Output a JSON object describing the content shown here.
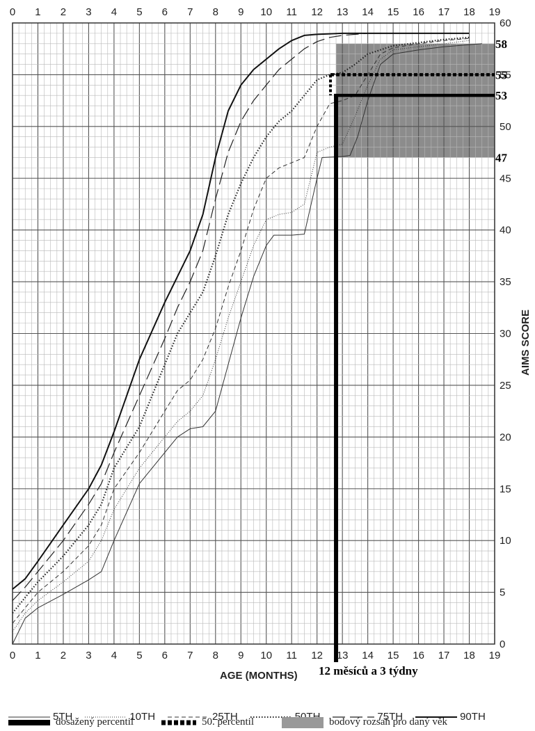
{
  "chart_data": {
    "type": "line",
    "xlabel": "AGE (MONTHS)",
    "ylabel": "AIMS SCORE",
    "xlim": [
      0,
      19
    ],
    "ylim": [
      0,
      60
    ],
    "x_ticks": [
      "0",
      "1",
      "2",
      "3",
      "4",
      "5",
      "6",
      "7",
      "8",
      "9",
      "10",
      "11",
      "12",
      "13",
      "14",
      "15",
      "16",
      "17",
      "18",
      "19"
    ],
    "y_ticks": [
      "0",
      "5",
      "10",
      "15",
      "20",
      "25",
      "30",
      "35",
      "40",
      "45",
      "50",
      "55",
      "60"
    ],
    "series": [
      {
        "name": "5TH",
        "style": "solid-thin",
        "color": "#333333",
        "points": [
          [
            0,
            0
          ],
          [
            0.5,
            2.5
          ],
          [
            1,
            3.5
          ],
          [
            2,
            4.8
          ],
          [
            3,
            6.2
          ],
          [
            3.5,
            7
          ],
          [
            4,
            10
          ],
          [
            5,
            15.5
          ],
          [
            6,
            18.5
          ],
          [
            6.5,
            20
          ],
          [
            7,
            20.8
          ],
          [
            7.5,
            21
          ],
          [
            8,
            22.5
          ],
          [
            8.5,
            27
          ],
          [
            9,
            31.5
          ],
          [
            9.5,
            35.5
          ],
          [
            10,
            38.5
          ],
          [
            10.3,
            39.5
          ],
          [
            11,
            39.5
          ],
          [
            11.5,
            39.6
          ],
          [
            12,
            45
          ],
          [
            12.2,
            47
          ],
          [
            13,
            47.1
          ],
          [
            13.3,
            47.2
          ],
          [
            13.6,
            49
          ],
          [
            14,
            52.5
          ],
          [
            14.5,
            56
          ],
          [
            15,
            57
          ],
          [
            16,
            57.4
          ],
          [
            17,
            57.7
          ],
          [
            18,
            57.9
          ],
          [
            18.5,
            58
          ]
        ]
      },
      {
        "name": "10TH",
        "style": "dotted-thin",
        "color": "#333333",
        "points": [
          [
            0,
            1.2
          ],
          [
            0.5,
            3
          ],
          [
            1,
            4.2
          ],
          [
            2,
            6
          ],
          [
            3,
            8
          ],
          [
            3.5,
            10
          ],
          [
            4,
            13
          ],
          [
            5,
            17
          ],
          [
            6,
            20
          ],
          [
            6.5,
            21.5
          ],
          [
            7,
            22.5
          ],
          [
            7.5,
            24
          ],
          [
            8,
            27.5
          ],
          [
            8.5,
            31.5
          ],
          [
            9,
            35
          ],
          [
            9.5,
            38.5
          ],
          [
            10,
            41
          ],
          [
            10.5,
            41.5
          ],
          [
            11,
            41.7
          ],
          [
            11.5,
            42.5
          ],
          [
            12,
            47.5
          ],
          [
            12.5,
            48
          ],
          [
            13,
            48.3
          ],
          [
            13.5,
            51
          ],
          [
            14,
            54
          ],
          [
            14.5,
            56.5
          ],
          [
            15,
            57.4
          ],
          [
            16,
            57.7
          ],
          [
            17,
            58
          ],
          [
            18,
            58.3
          ]
        ]
      },
      {
        "name": "25TH",
        "style": "dashed-thin",
        "color": "#333333",
        "points": [
          [
            0,
            2
          ],
          [
            0.5,
            3.5
          ],
          [
            1,
            5
          ],
          [
            2,
            7
          ],
          [
            3,
            9.5
          ],
          [
            3.5,
            11.5
          ],
          [
            4,
            15
          ],
          [
            5,
            18.5
          ],
          [
            6,
            22.5
          ],
          [
            6.5,
            24.5
          ],
          [
            7,
            25.5
          ],
          [
            7.5,
            27.5
          ],
          [
            8,
            30.5
          ],
          [
            8.5,
            34.5
          ],
          [
            9,
            38
          ],
          [
            9.5,
            42
          ],
          [
            10,
            45
          ],
          [
            10.5,
            46
          ],
          [
            11,
            46.5
          ],
          [
            11.5,
            47
          ],
          [
            12,
            50
          ],
          [
            12.5,
            52.2
          ],
          [
            13,
            52.5
          ],
          [
            13.5,
            53
          ],
          [
            14,
            55
          ],
          [
            14.5,
            57
          ],
          [
            15,
            57.6
          ],
          [
            16,
            58
          ],
          [
            17,
            58.3
          ],
          [
            18,
            58.5
          ]
        ]
      },
      {
        "name": "50TH",
        "style": "dotted-thick",
        "color": "#222222",
        "points": [
          [
            0,
            3
          ],
          [
            0.5,
            4.5
          ],
          [
            1,
            6
          ],
          [
            2,
            8.5
          ],
          [
            3,
            11.5
          ],
          [
            3.5,
            13.5
          ],
          [
            4,
            17
          ],
          [
            5,
            21
          ],
          [
            6,
            27
          ],
          [
            6.5,
            30
          ],
          [
            7,
            32
          ],
          [
            7.5,
            34
          ],
          [
            8,
            37.5
          ],
          [
            8.5,
            41.5
          ],
          [
            9,
            44.5
          ],
          [
            9.5,
            47
          ],
          [
            10,
            49
          ],
          [
            10.5,
            50.5
          ],
          [
            11,
            51.5
          ],
          [
            11.5,
            53
          ],
          [
            12,
            54.5
          ],
          [
            12.5,
            55
          ],
          [
            13,
            55.2
          ],
          [
            13.5,
            56
          ],
          [
            14,
            57
          ],
          [
            15,
            57.8
          ],
          [
            16,
            58.1
          ],
          [
            17,
            58.4
          ],
          [
            18,
            58.6
          ]
        ]
      },
      {
        "name": "75TH",
        "style": "longdash",
        "color": "#222222",
        "points": [
          [
            0,
            4.2
          ],
          [
            0.5,
            5.5
          ],
          [
            1,
            7
          ],
          [
            2,
            10
          ],
          [
            3,
            13.5
          ],
          [
            3.5,
            15.5
          ],
          [
            4,
            18.5
          ],
          [
            5,
            24
          ],
          [
            6,
            29.5
          ],
          [
            6.5,
            32.5
          ],
          [
            7,
            35
          ],
          [
            7.5,
            38
          ],
          [
            8,
            43
          ],
          [
            8.5,
            47.5
          ],
          [
            9,
            50.5
          ],
          [
            9.5,
            52.5
          ],
          [
            10,
            54
          ],
          [
            10.5,
            55.5
          ],
          [
            11,
            56.5
          ],
          [
            11.5,
            57.5
          ],
          [
            12,
            58.2
          ],
          [
            12.5,
            58.6
          ],
          [
            13,
            58.8
          ],
          [
            14,
            59
          ],
          [
            15,
            59
          ],
          [
            16,
            59
          ],
          [
            17,
            59
          ],
          [
            18,
            59
          ]
        ]
      },
      {
        "name": "90TH",
        "style": "solid-med",
        "color": "#111111",
        "points": [
          [
            0,
            5.3
          ],
          [
            0.5,
            6.3
          ],
          [
            1,
            8
          ],
          [
            2,
            11.5
          ],
          [
            3,
            15
          ],
          [
            3.5,
            17.3
          ],
          [
            4,
            20.5
          ],
          [
            5,
            27.5
          ],
          [
            6,
            33
          ],
          [
            6.5,
            35.5
          ],
          [
            7,
            38
          ],
          [
            7.5,
            41.5
          ],
          [
            8,
            47
          ],
          [
            8.5,
            51.5
          ],
          [
            9,
            54
          ],
          [
            9.5,
            55.5
          ],
          [
            10,
            56.5
          ],
          [
            10.5,
            57.5
          ],
          [
            11,
            58.3
          ],
          [
            11.5,
            58.8
          ],
          [
            12,
            58.9
          ],
          [
            13,
            59
          ],
          [
            14,
            59
          ],
          [
            15,
            59
          ],
          [
            16,
            59
          ],
          [
            17,
            59
          ],
          [
            18,
            59
          ]
        ]
      }
    ],
    "annotations": {
      "achieved_percentile_score": 53,
      "achieved_label": "53",
      "percentile_50_score": 55,
      "percentile_50_label": "55",
      "range_low": 47,
      "range_high": 58,
      "range_low_label": "47",
      "range_high_label": "58",
      "age_months": 12.75,
      "age_label": "12 měsíců a 3 týdny",
      "range_x_start": 12.75,
      "range_x_end": 19
    }
  },
  "legend": {
    "row1": [
      "5TH",
      "10TH",
      "25TH",
      "50TH",
      "75TH",
      "90TH"
    ],
    "row2": [
      "dosažený percentil",
      "50. percentil",
      "bodový rozsah pro daný věk"
    ]
  },
  "colors": {
    "grid_fine": "#b8b8b8",
    "grid_major": "#555555",
    "shade": "#8c8c8c",
    "achieved": "#000000"
  }
}
